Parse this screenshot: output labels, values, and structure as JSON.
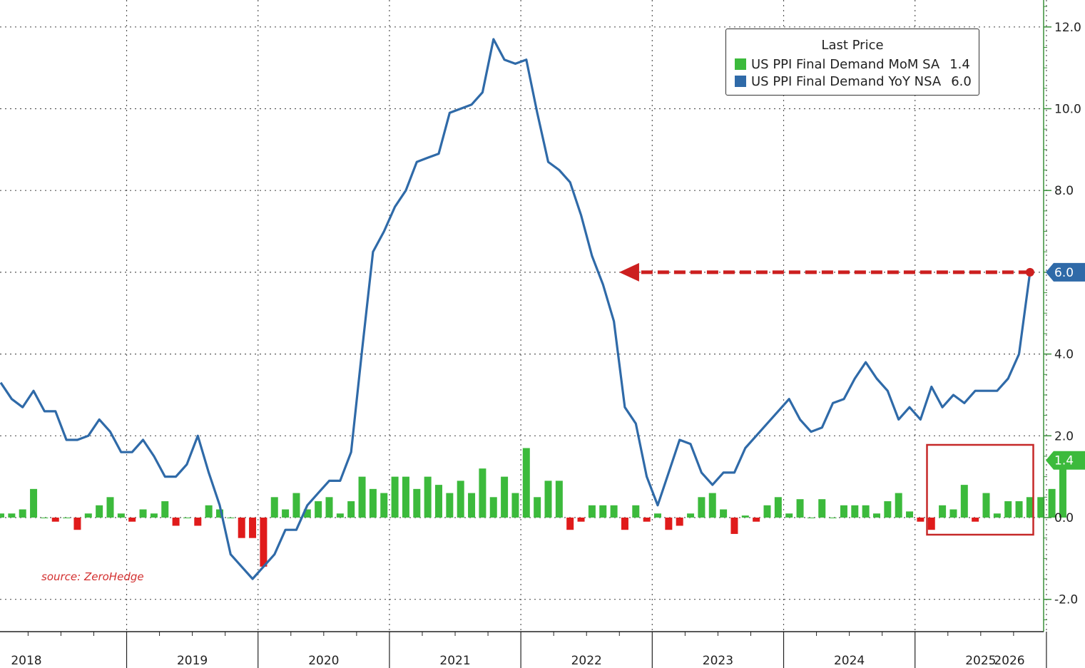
{
  "chart_data": {
    "type": "bar+line",
    "ylim": [
      -2.6,
      12.6
    ],
    "yticks": [
      12.0,
      10.0,
      8.0,
      6.0,
      4.0,
      2.0,
      0.0,
      -2.0
    ],
    "ytick_labels": [
      "12.0",
      "10.0",
      "8.0",
      "6.0",
      "4.0",
      "2.0",
      "0.0",
      "-2.0"
    ],
    "year_labels": [
      "2018",
      "2019",
      "2020",
      "2021",
      "2022",
      "2023",
      "2024",
      "2025",
      "2026"
    ],
    "x_start": "2018-01",
    "grid": true,
    "legend": {
      "title": "Last Price",
      "position": "top-right",
      "entries": [
        {
          "name": "US PPI Final Demand MoM SA",
          "value": "1.4",
          "color": "#3cba3c"
        },
        {
          "name": "US PPI Final Demand YoY NSA",
          "value": "6.0",
          "color": "#2f6aa8"
        }
      ]
    },
    "series": [
      {
        "name": "US PPI Final Demand MoM SA",
        "kind": "bar",
        "color_positive": "#3cba3c",
        "color_negative": "#e01b1b",
        "last_label": "1.4",
        "values": [
          0.1,
          0.1,
          0.2,
          0.7,
          0.0,
          -0.1,
          0.0,
          -0.3,
          0.1,
          0.3,
          0.5,
          0.1,
          -0.1,
          0.2,
          0.1,
          0.4,
          -0.2,
          0.0,
          -0.2,
          0.3,
          0.2,
          0.0,
          -0.5,
          -0.5,
          -1.2,
          0.5,
          0.2,
          0.6,
          0.2,
          0.4,
          0.5,
          0.1,
          0.4,
          1.0,
          0.7,
          0.6,
          1.0,
          1.0,
          0.7,
          1.0,
          0.8,
          0.6,
          0.9,
          0.6,
          1.2,
          0.5,
          1.0,
          0.6,
          1.7,
          0.5,
          0.9,
          0.9,
          -0.3,
          -0.1,
          0.3,
          0.3,
          0.3,
          -0.3,
          0.3,
          -0.1,
          0.1,
          -0.3,
          -0.2,
          0.1,
          0.5,
          0.6,
          0.2,
          -0.4,
          0.05,
          -0.1,
          0.3,
          0.5,
          0.1,
          0.45,
          0.0,
          0.45,
          0.0,
          0.3,
          0.3,
          0.3,
          0.1,
          0.4,
          0.6,
          0.15,
          -0.1,
          -0.3,
          0.3,
          0.2,
          0.8,
          -0.1,
          0.6,
          0.1,
          0.4,
          0.4,
          0.5,
          0.5,
          0.7,
          1.4
        ]
      },
      {
        "name": "US PPI Final Demand YoY NSA",
        "kind": "line",
        "color": "#2f6aa8",
        "last_label": "6.0",
        "values": [
          3.3,
          2.9,
          2.7,
          3.1,
          2.6,
          2.6,
          1.9,
          1.9,
          2.0,
          2.4,
          2.1,
          1.6,
          1.6,
          1.9,
          1.5,
          1.0,
          1.0,
          1.3,
          2.0,
          1.1,
          0.3,
          -0.9,
          -1.2,
          -1.5,
          -1.2,
          -0.9,
          -0.3,
          -0.3,
          0.3,
          0.6,
          0.9,
          0.9,
          1.6,
          4.1,
          6.5,
          7.0,
          7.6,
          8.0,
          8.7,
          8.8,
          8.9,
          9.9,
          10.0,
          10.1,
          10.4,
          11.7,
          11.2,
          11.1,
          11.2,
          9.9,
          8.7,
          8.5,
          8.2,
          7.4,
          6.4,
          5.7,
          4.8,
          2.7,
          2.3,
          1.0,
          0.3,
          1.1,
          1.9,
          1.8,
          1.1,
          0.8,
          1.1,
          1.1,
          1.7,
          2.0,
          2.3,
          2.6,
          2.9,
          2.4,
          2.1,
          2.2,
          2.8,
          2.9,
          3.4,
          3.8,
          3.4,
          3.1,
          2.4,
          2.7,
          2.4,
          3.2,
          2.7,
          3.0,
          2.8,
          3.1,
          3.1,
          3.1,
          3.4,
          4.0,
          6.0
        ]
      }
    ],
    "annotation_arrow": {
      "from_value": 6.0,
      "to_label": "2022-10"
    }
  },
  "source_text": "source: ZeroHedge",
  "colors": {
    "grid": "#555555",
    "axis": "#222222",
    "right_axis": "#3a8f3a",
    "highlight_box": "#c62828",
    "arrow": "#cc1f1f",
    "badge_blue": "#2f6aa8",
    "badge_green": "#3cba3c"
  }
}
